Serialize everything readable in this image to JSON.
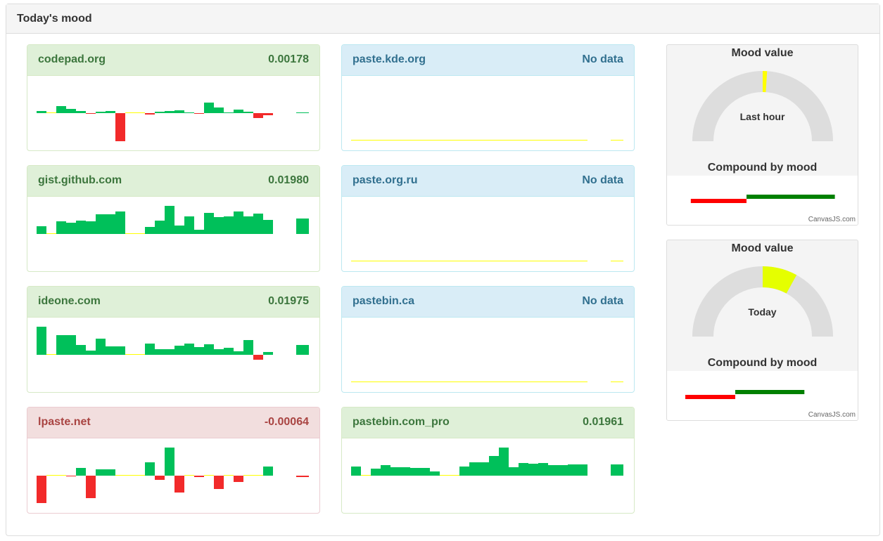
{
  "panel": {
    "title": "Today's mood"
  },
  "colors": {
    "positive": "#00c05a",
    "negative": "#f22a2a",
    "zero": "#ffff00"
  },
  "sites": [
    {
      "name": "codepad.org",
      "value": "0.00178",
      "state": "success",
      "col": 0,
      "row": 0,
      "bars": [
        3,
        0,
        10,
        6,
        3,
        -1,
        2,
        3,
        -40,
        0,
        0,
        -2,
        2,
        3,
        4,
        1,
        -1,
        15,
        8,
        1,
        5,
        2,
        -7,
        -3
      ],
      "current": 1
    },
    {
      "name": "gist.github.com",
      "value": "0.01980",
      "state": "success",
      "col": 0,
      "row": 1,
      "bars": [
        11,
        0,
        18,
        16,
        19,
        18,
        28,
        28,
        32,
        0,
        0,
        10,
        19,
        40,
        12,
        25,
        6,
        30,
        24,
        25,
        32,
        25,
        29,
        20
      ],
      "current": 22
    },
    {
      "name": "ideone.com",
      "value": "0.01975",
      "state": "success",
      "col": 0,
      "row": 2,
      "bars": [
        40,
        0,
        28,
        28,
        14,
        6,
        23,
        12,
        12,
        0,
        0,
        16,
        8,
        8,
        13,
        16,
        11,
        15,
        8,
        10,
        5,
        21,
        -7,
        4
      ],
      "current": 14
    },
    {
      "name": "lpaste.net",
      "value": "-0.00064",
      "state": "danger",
      "col": 0,
      "row": 3,
      "bars": [
        -39,
        0,
        0,
        -1,
        11,
        -32,
        9,
        9,
        0,
        0,
        0,
        19,
        -6,
        40,
        -24,
        0,
        -2,
        0,
        -19,
        0,
        -9,
        0,
        0,
        13
      ],
      "current": -2
    },
    {
      "name": "paste.kde.org",
      "value": "No data",
      "state": "info",
      "col": 1,
      "row": 0,
      "bars": [],
      "current": null
    },
    {
      "name": "paste.org.ru",
      "value": "No data",
      "state": "info",
      "col": 1,
      "row": 1,
      "bars": [],
      "current": null
    },
    {
      "name": "pastebin.ca",
      "value": "No data",
      "state": "info",
      "col": 1,
      "row": 2,
      "bars": [],
      "current": null
    },
    {
      "name": "pastebin.com_pro",
      "value": "0.01961",
      "state": "success",
      "col": 1,
      "row": 3,
      "bars": [
        13,
        0,
        10,
        15,
        12,
        12,
        11,
        11,
        6,
        0,
        0,
        13,
        19,
        19,
        28,
        40,
        12,
        18,
        17,
        18,
        15,
        15,
        16,
        16
      ],
      "current": 16
    }
  ],
  "gauges": [
    {
      "title": "Mood value",
      "label": "Last hour",
      "subtitle": "Compound by mood",
      "credit": "CanvasJS.com",
      "range_fraction": [
        0.5,
        0.52
      ],
      "color": "#ffff00",
      "compound": {
        "negative": 0.29,
        "positive": 0.46
      }
    },
    {
      "title": "Mood value",
      "label": "Today",
      "subtitle": "Compound by mood",
      "credit": "CanvasJS.com",
      "range_fraction": [
        0.5,
        0.66
      ],
      "color": "#e5ff00",
      "compound": {
        "negative": 0.26,
        "positive": 0.36
      }
    }
  ]
}
